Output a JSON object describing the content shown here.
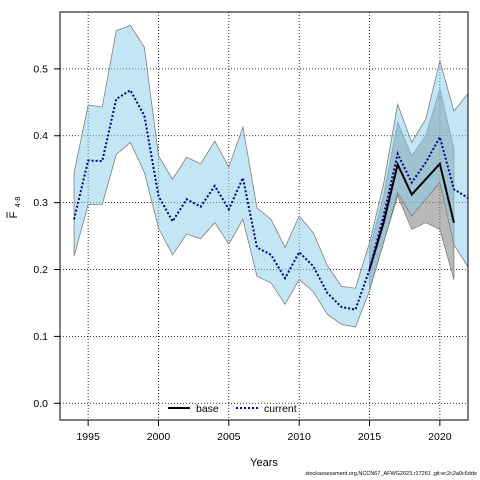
{
  "chart_data": {
    "type": "line",
    "xlabel": "Years",
    "ylabel_main": "F",
    "ylabel_sub": "4-8",
    "xlim": [
      1993.0,
      2022.0
    ],
    "ylim": [
      -0.025,
      0.585
    ],
    "xticks": [
      1995,
      2000,
      2005,
      2010,
      2015,
      2020
    ],
    "yticks": [
      0.0,
      0.1,
      0.2,
      0.3,
      0.4,
      0.5
    ],
    "grid": true,
    "legend_position": "bottom",
    "footer": "stockassessment.org,NCCN67_AFWG2023,r17261 ,git:ec2c2a0c6dde",
    "colors": {
      "current_band": "#87ceeb",
      "base_band": "#808080",
      "band_edge": "#7f7f7f",
      "current_line": "#00008b",
      "base_line": "#000000"
    },
    "series": [
      {
        "name": "base",
        "years": [
          2015,
          2016,
          2017,
          2018,
          2019,
          2020,
          2021
        ],
        "estimate": [
          0.2,
          0.27,
          0.357,
          0.312,
          0.335,
          0.358,
          0.27
        ],
        "lower": [
          0.17,
          0.24,
          0.31,
          0.26,
          0.27,
          0.26,
          0.185
        ],
        "upper": [
          0.23,
          0.31,
          0.42,
          0.37,
          0.4,
          0.47,
          0.38
        ]
      },
      {
        "name": "current",
        "years": [
          1994,
          1995,
          1996,
          1997,
          1998,
          1999,
          2000,
          2001,
          2002,
          2003,
          2004,
          2005,
          2006,
          2007,
          2008,
          2009,
          2010,
          2011,
          2012,
          2013,
          2014,
          2015,
          2016,
          2017,
          2018,
          2019,
          2020,
          2021,
          2022
        ],
        "estimate": [
          0.275,
          0.363,
          0.362,
          0.455,
          0.468,
          0.43,
          0.31,
          0.272,
          0.305,
          0.294,
          0.325,
          0.29,
          0.337,
          0.233,
          0.222,
          0.187,
          0.226,
          0.205,
          0.165,
          0.144,
          0.14,
          0.2,
          0.28,
          0.373,
          0.33,
          0.36,
          0.398,
          0.32,
          0.307
        ],
        "lower": [
          0.22,
          0.297,
          0.297,
          0.372,
          0.39,
          0.345,
          0.262,
          0.222,
          0.253,
          0.246,
          0.27,
          0.238,
          0.275,
          0.19,
          0.18,
          0.148,
          0.185,
          0.167,
          0.133,
          0.118,
          0.114,
          0.168,
          0.24,
          0.315,
          0.28,
          0.305,
          0.33,
          0.237,
          0.204
        ],
        "upper": [
          0.345,
          0.446,
          0.443,
          0.557,
          0.565,
          0.532,
          0.37,
          0.335,
          0.368,
          0.358,
          0.392,
          0.353,
          0.413,
          0.292,
          0.275,
          0.233,
          0.28,
          0.255,
          0.206,
          0.175,
          0.172,
          0.24,
          0.328,
          0.447,
          0.39,
          0.425,
          0.512,
          0.437,
          0.463
        ]
      }
    ]
  }
}
